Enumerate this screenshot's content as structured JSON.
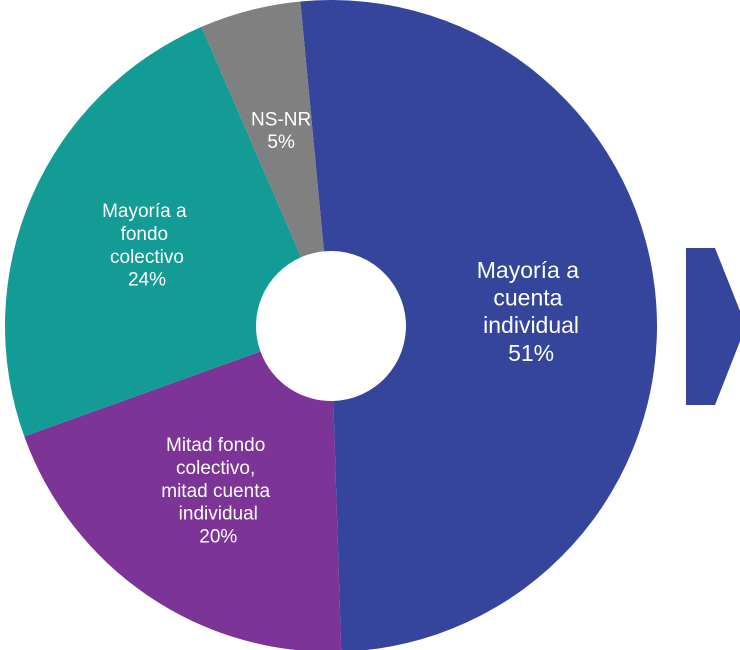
{
  "chart_data": {
    "type": "donut",
    "categories": [
      "Mayoría a cuenta individual",
      "Mitad fondo colectivo, mitad cuenta individual",
      "Mayoría a fondo colectivo",
      "NS-NR"
    ],
    "values": [
      51,
      20,
      24,
      5
    ],
    "value_labels": [
      "51%",
      "20%",
      "24%",
      "5%"
    ],
    "colors": [
      "#34459b",
      "#7d3497",
      "#139b95",
      "#808080"
    ]
  }
}
